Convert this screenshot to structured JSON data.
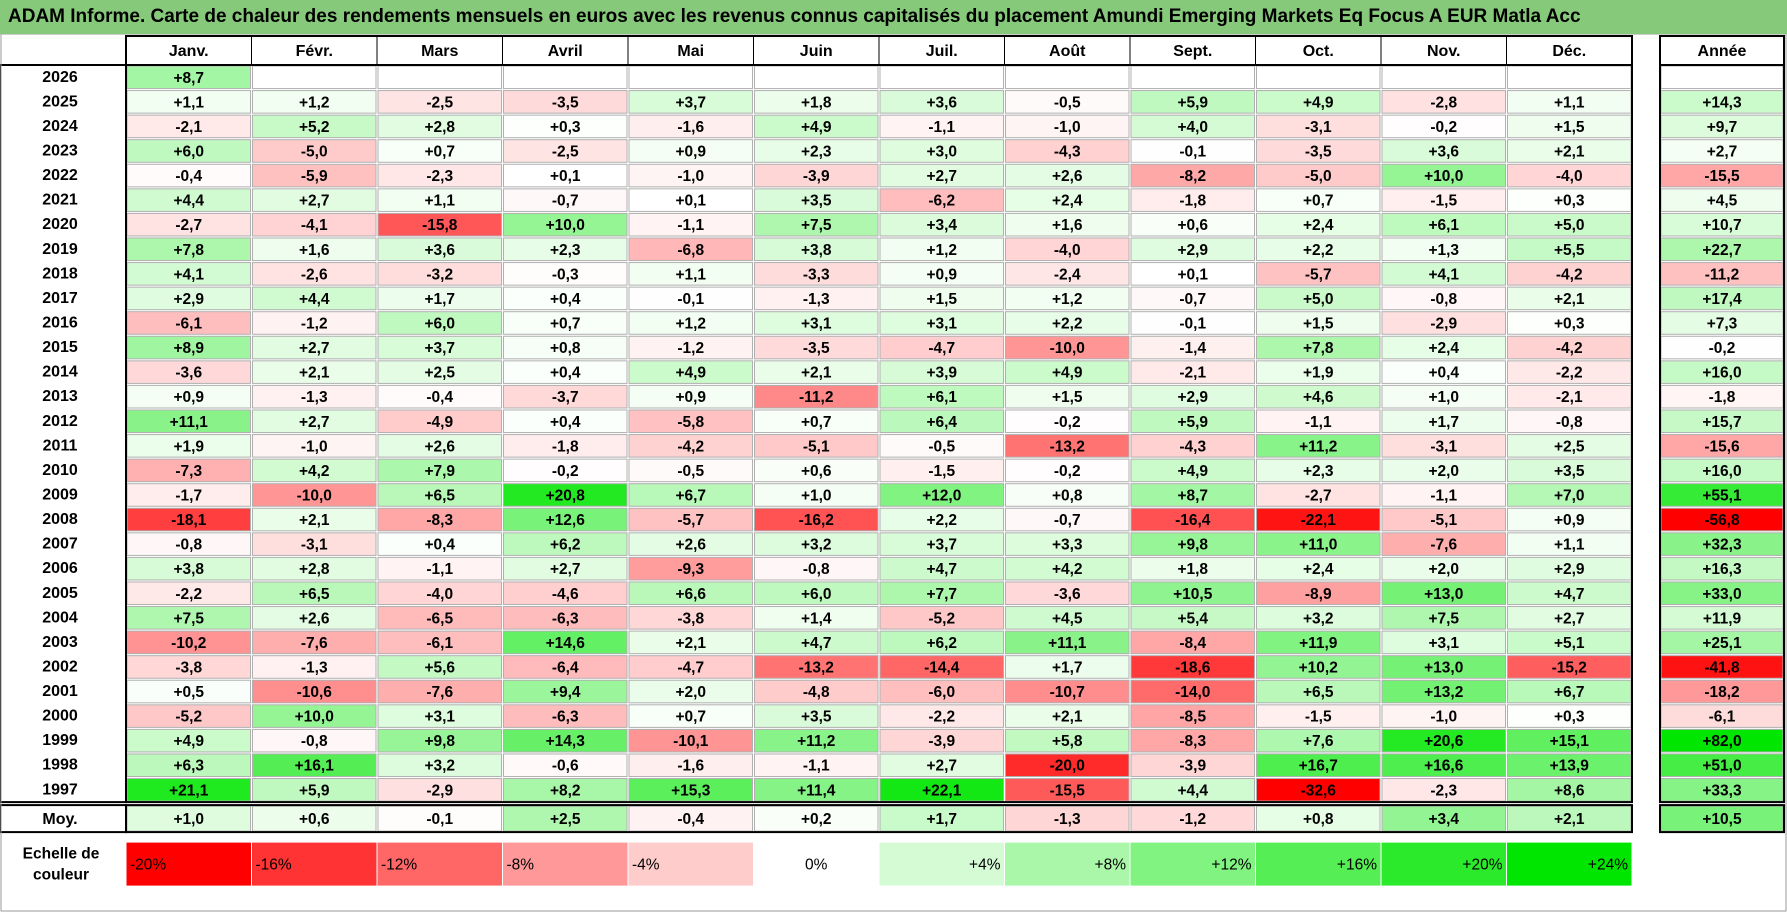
{
  "title": "ADAM Informe. Carte de chaleur des rendements mensuels en euros avec les revenus connus capitalisés du placement Amundi Emerging Markets Eq Focus A EUR Matla Acc",
  "chart_data": {
    "type": "heatmap",
    "title": "ADAM Informe. Carte de chaleur des rendements mensuels en euros avec les revenus connus capitalisés du placement Amundi Emerging Markets Eq Focus A EUR Matla Acc",
    "months": [
      "Janv.",
      "Févr.",
      "Mars",
      "Avril",
      "Mai",
      "Juin",
      "Juil.",
      "Août",
      "Sept.",
      "Oct.",
      "Nov.",
      "Déc."
    ],
    "annual_header": "Année",
    "years": [
      "2026",
      "2025",
      "2024",
      "2023",
      "2022",
      "2021",
      "2020",
      "2019",
      "2018",
      "2017",
      "2016",
      "2015",
      "2014",
      "2013",
      "2012",
      "2011",
      "2010",
      "2009",
      "2008",
      "2007",
      "2006",
      "2005",
      "2004",
      "2003",
      "2002",
      "2001",
      "2000",
      "1999",
      "1998",
      "1997"
    ],
    "values": [
      [
        "+8,7",
        "",
        "",
        "",
        "",
        "",
        "",
        "",
        "",
        "",
        "",
        "",
        ""
      ],
      [
        "+1,1",
        "+1,2",
        "-2,5",
        "-3,5",
        "+3,7",
        "+1,8",
        "+3,6",
        "-0,5",
        "+5,9",
        "+4,9",
        "-2,8",
        "+1,1",
        "+14,3"
      ],
      [
        "-2,1",
        "+5,2",
        "+2,8",
        "+0,3",
        "-1,6",
        "+4,9",
        "-1,1",
        "-1,0",
        "+4,0",
        "-3,1",
        "-0,2",
        "+1,5",
        "+9,7"
      ],
      [
        "+6,0",
        "-5,0",
        "+0,7",
        "-2,5",
        "+0,9",
        "+2,3",
        "+3,0",
        "-4,3",
        "-0,1",
        "-3,5",
        "+3,6",
        "+2,1",
        "+2,7"
      ],
      [
        "-0,4",
        "-5,9",
        "-2,3",
        "+0,1",
        "-1,0",
        "-3,9",
        "+2,7",
        "+2,6",
        "-8,2",
        "-5,0",
        "+10,0",
        "-4,0",
        "-15,5"
      ],
      [
        "+4,4",
        "+2,7",
        "+1,1",
        "-0,7",
        "+0,1",
        "+3,5",
        "-6,2",
        "+2,4",
        "-1,8",
        "+0,7",
        "-1,5",
        "+0,3",
        "+4,5"
      ],
      [
        "-2,7",
        "-4,1",
        "-15,8",
        "+10,0",
        "-1,1",
        "+7,5",
        "+3,4",
        "+1,6",
        "+0,6",
        "+2,4",
        "+6,1",
        "+5,0",
        "+10,7"
      ],
      [
        "+7,8",
        "+1,6",
        "+3,6",
        "+2,3",
        "-6,8",
        "+3,8",
        "+1,2",
        "-4,0",
        "+2,9",
        "+2,2",
        "+1,3",
        "+5,5",
        "+22,7"
      ],
      [
        "+4,1",
        "-2,6",
        "-3,2",
        "-0,3",
        "+1,1",
        "-3,3",
        "+0,9",
        "-2,4",
        "+0,1",
        "-5,7",
        "+4,1",
        "-4,2",
        "-11,2"
      ],
      [
        "+2,9",
        "+4,4",
        "+1,7",
        "+0,4",
        "-0,1",
        "-1,3",
        "+1,5",
        "+1,2",
        "-0,7",
        "+5,0",
        "-0,8",
        "+2,1",
        "+17,4"
      ],
      [
        "-6,1",
        "-1,2",
        "+6,0",
        "+0,7",
        "+1,2",
        "+3,1",
        "+3,1",
        "+2,2",
        "-0,1",
        "+1,5",
        "-2,9",
        "+0,3",
        "+7,3"
      ],
      [
        "+8,9",
        "+2,7",
        "+3,7",
        "+0,8",
        "-1,2",
        "-3,5",
        "-4,7",
        "-10,0",
        "-1,4",
        "+7,8",
        "+2,4",
        "-4,2",
        "-0,2"
      ],
      [
        "-3,6",
        "+2,1",
        "+2,5",
        "+0,4",
        "+4,9",
        "+2,1",
        "+3,9",
        "+4,9",
        "-2,1",
        "+1,9",
        "+0,4",
        "-2,2",
        "+16,0"
      ],
      [
        "+0,9",
        "-1,3",
        "-0,4",
        "-3,7",
        "+0,9",
        "-11,2",
        "+6,1",
        "+1,5",
        "+2,9",
        "+4,6",
        "+1,0",
        "-2,1",
        "-1,8"
      ],
      [
        "+11,1",
        "+2,7",
        "-4,9",
        "+0,4",
        "-5,8",
        "+0,7",
        "+6,4",
        "-0,2",
        "+5,9",
        "-1,1",
        "+1,7",
        "-0,8",
        "+15,7"
      ],
      [
        "+1,9",
        "-1,0",
        "+2,6",
        "-1,8",
        "-4,2",
        "-5,1",
        "-0,5",
        "-13,2",
        "-4,3",
        "+11,2",
        "-3,1",
        "+2,5",
        "-15,6"
      ],
      [
        "-7,3",
        "+4,2",
        "+7,9",
        "-0,2",
        "-0,5",
        "+0,6",
        "-1,5",
        "-0,2",
        "+4,9",
        "+2,3",
        "+2,0",
        "+3,5",
        "+16,0"
      ],
      [
        "-1,7",
        "-10,0",
        "+6,5",
        "+20,8",
        "+6,7",
        "+1,0",
        "+12,0",
        "+0,8",
        "+8,7",
        "-2,7",
        "-1,1",
        "+7,0",
        "+55,1"
      ],
      [
        "-18,1",
        "+2,1",
        "-8,3",
        "+12,6",
        "-5,7",
        "-16,2",
        "+2,2",
        "-0,7",
        "-16,4",
        "-22,1",
        "-5,1",
        "+0,9",
        "-56,8"
      ],
      [
        "-0,8",
        "-3,1",
        "+0,4",
        "+6,2",
        "+2,6",
        "+3,2",
        "+3,7",
        "+3,3",
        "+9,8",
        "+11,0",
        "-7,6",
        "+1,1",
        "+32,3"
      ],
      [
        "+3,8",
        "+2,8",
        "-1,1",
        "+2,7",
        "-9,3",
        "-0,8",
        "+4,7",
        "+4,2",
        "+1,8",
        "+2,4",
        "+2,0",
        "+2,9",
        "+16,3"
      ],
      [
        "-2,2",
        "+6,5",
        "-4,0",
        "-4,6",
        "+6,6",
        "+6,0",
        "+7,7",
        "-3,6",
        "+10,5",
        "-8,9",
        "+13,0",
        "+4,7",
        "+33,0"
      ],
      [
        "+7,5",
        "+2,6",
        "-6,5",
        "-6,3",
        "-3,8",
        "+1,4",
        "-5,2",
        "+4,5",
        "+5,4",
        "+3,2",
        "+7,5",
        "+2,7",
        "+11,9"
      ],
      [
        "-10,2",
        "-7,6",
        "-6,1",
        "+14,6",
        "+2,1",
        "+4,7",
        "+6,2",
        "+11,1",
        "-8,4",
        "+11,9",
        "+3,1",
        "+5,1",
        "+25,1"
      ],
      [
        "-3,8",
        "-1,3",
        "+5,6",
        "-6,4",
        "-4,7",
        "-13,2",
        "-14,4",
        "+1,7",
        "-18,6",
        "+10,2",
        "+13,0",
        "-15,2",
        "-41,8"
      ],
      [
        "+0,5",
        "-10,6",
        "-7,6",
        "+9,4",
        "+2,0",
        "-4,8",
        "-6,0",
        "-10,7",
        "-14,0",
        "+6,5",
        "+13,2",
        "+6,7",
        "-18,2"
      ],
      [
        "-5,2",
        "+10,0",
        "+3,1",
        "-6,3",
        "+0,7",
        "+3,5",
        "-2,2",
        "+2,1",
        "-8,5",
        "-1,5",
        "-1,0",
        "+0,3",
        "-6,1"
      ],
      [
        "+4,9",
        "-0,8",
        "+9,8",
        "+14,3",
        "-10,1",
        "+11,2",
        "-3,9",
        "+5,8",
        "-8,3",
        "+7,6",
        "+20,6",
        "+15,1",
        "+82,0"
      ],
      [
        "+6,3",
        "+16,1",
        "+3,2",
        "-0,6",
        "-1,6",
        "-1,1",
        "+2,7",
        "-20,0",
        "-3,9",
        "+16,7",
        "+16,6",
        "+13,9",
        "+51,0"
      ],
      [
        "+21,1",
        "+5,9",
        "-2,9",
        "+8,2",
        "+15,3",
        "+11,4",
        "+22,1",
        "-15,5",
        "+4,4",
        "-32,6",
        "-2,3",
        "+8,6",
        "+33,3"
      ]
    ],
    "average_label": "Moy.",
    "averages": [
      "+1,0",
      "+0,6",
      "-0,1",
      "+2,5",
      "-0,4",
      "+0,2",
      "+1,7",
      "-1,3",
      "-1,2",
      "+0,8",
      "+3,4",
      "+2,1",
      "+10,5"
    ],
    "scale_label_line1": "Echelle de",
    "scale_label_line2": "couleur",
    "scale": [
      "-20%",
      "-16%",
      "-12%",
      "-8%",
      "-4%",
      "0%",
      "+4%",
      "+8%",
      "+12%",
      "+16%",
      "+20%",
      "+24%"
    ],
    "colors": {
      "title_bg": "#86c97a",
      "negative_max": "#ff0000",
      "positive_max": "#00e600",
      "neutral": "#ffffff",
      "grid": "#b0b0b0",
      "frame": "#000000"
    }
  }
}
